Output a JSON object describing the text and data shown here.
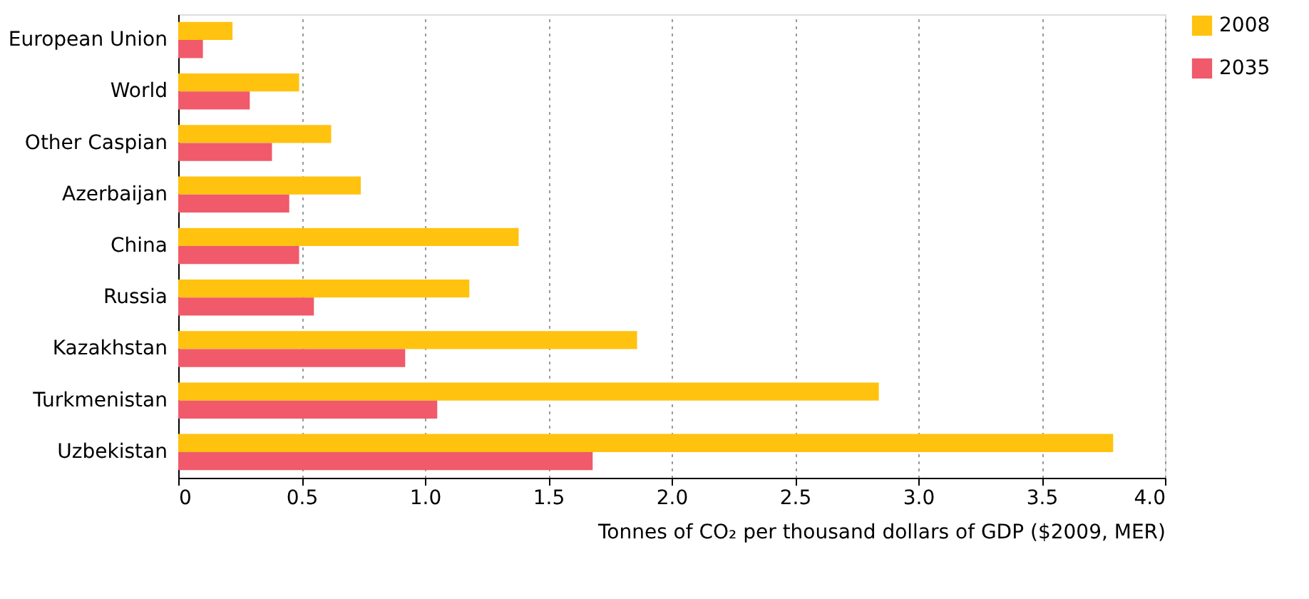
{
  "chart_data": {
    "type": "bar",
    "orientation": "horizontal",
    "xlabel": "Tonnes of CO₂ per thousand dollars of GDP ($2009, MER)",
    "categories": [
      "European Union",
      "World",
      "Other Caspian",
      "Azerbaijan",
      "China",
      "Russia",
      "Kazakhstan",
      "Turkmenistan",
      "Uzbekistan"
    ],
    "series": [
      {
        "name": "2008",
        "color": "#ffc20e",
        "values": [
          0.22,
          0.49,
          0.62,
          0.74,
          1.38,
          1.18,
          1.86,
          2.84,
          3.79
        ]
      },
      {
        "name": "2035",
        "color": "#f05a6a",
        "values": [
          0.1,
          0.29,
          0.38,
          0.45,
          0.49,
          0.55,
          0.92,
          1.05,
          1.68
        ]
      }
    ],
    "xlim": [
      0,
      4.0
    ],
    "xticks": [
      0,
      0.5,
      {
        "value": 1,
        "label": "1.0"
      },
      1.5,
      {
        "value": 2,
        "label": "2.0"
      },
      2.5,
      {
        "value": 3,
        "label": "3.0"
      },
      3.5,
      {
        "value": 4,
        "label": "4.0"
      }
    ],
    "grid": "x",
    "legend": "top right"
  }
}
